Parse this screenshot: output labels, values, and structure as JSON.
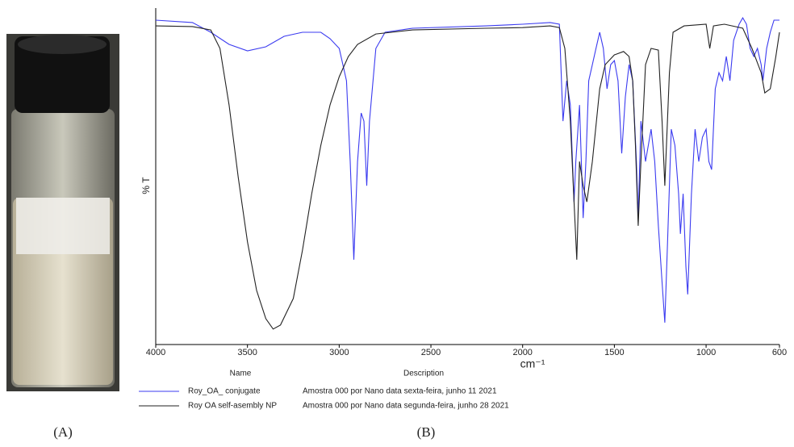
{
  "panel_labels": [
    "(A)",
    "(B)"
  ],
  "chart_data": {
    "type": "line",
    "xlabel": "cm⁻¹",
    "ylabel": "% T",
    "xlim": [
      4000,
      600
    ],
    "xticks": [
      4000,
      3500,
      3000,
      2500,
      2000,
      1500,
      1000,
      600
    ],
    "ylim": [
      0,
      100
    ],
    "legend_header": [
      "Name",
      "Description"
    ],
    "series": [
      {
        "name": "Roy_OA_ conjugate",
        "description": "Amostra 000 por Nano data sexta-feira, junho 11 2021",
        "color": "#3b3bf0",
        "x": [
          4000,
          3800,
          3700,
          3600,
          3500,
          3400,
          3300,
          3200,
          3100,
          3050,
          3000,
          2960,
          2940,
          2920,
          2900,
          2880,
          2865,
          2850,
          2835,
          2800,
          2750,
          2600,
          2200,
          2000,
          1850,
          1800,
          1780,
          1760,
          1740,
          1720,
          1710,
          1690,
          1670,
          1655,
          1640,
          1620,
          1600,
          1580,
          1560,
          1540,
          1520,
          1500,
          1480,
          1460,
          1440,
          1420,
          1400,
          1380,
          1370,
          1355,
          1330,
          1300,
          1280,
          1260,
          1240,
          1225,
          1210,
          1190,
          1170,
          1150,
          1140,
          1125,
          1110,
          1100,
          1080,
          1060,
          1040,
          1020,
          1000,
          985,
          970,
          950,
          930,
          910,
          890,
          870,
          850,
          820,
          800,
          780,
          760,
          740,
          720,
          700,
          690,
          670,
          650,
          630,
          600
        ],
        "values": [
          96.4,
          95.7,
          92.8,
          89.2,
          87.3,
          88.5,
          91.6,
          92.8,
          92.8,
          90.9,
          88.0,
          78.4,
          54.4,
          25.2,
          54.4,
          68.8,
          66.4,
          47.2,
          66.4,
          88.0,
          92.8,
          94.0,
          94.7,
          95.2,
          95.7,
          95.2,
          66.4,
          78.4,
          71.2,
          42.4,
          54.4,
          71.2,
          37.6,
          54.4,
          78.4,
          83.2,
          88.0,
          92.8,
          88.0,
          76.0,
          83.2,
          84.4,
          78.4,
          56.8,
          73.6,
          83.2,
          78.4,
          54.4,
          37.6,
          66.4,
          54.4,
          64.0,
          54.4,
          35.3,
          18.5,
          6.5,
          30.5,
          64.0,
          59.2,
          44.8,
          32.9,
          44.8,
          23.3,
          14.9,
          44.8,
          64.0,
          54.4,
          61.6,
          64.0,
          54.4,
          52.0,
          76.0,
          80.8,
          78.4,
          85.6,
          78.4,
          90.4,
          95.2,
          97.1,
          95.2,
          88.0,
          85.6,
          88.0,
          83.2,
          78.4,
          88.0,
          92.8,
          96.4,
          96.4
        ]
      },
      {
        "name": "Roy OA self-asembly NP",
        "description": "Amostra 000 por Nano data segunda-feira, junho 28 2021",
        "color": "#222222",
        "x": [
          4000,
          3800,
          3700,
          3650,
          3600,
          3550,
          3500,
          3450,
          3400,
          3360,
          3320,
          3250,
          3200,
          3150,
          3100,
          3050,
          3000,
          2950,
          2900,
          2800,
          2600,
          2200,
          2000,
          1850,
          1800,
          1770,
          1740,
          1720,
          1705,
          1690,
          1670,
          1650,
          1620,
          1580,
          1550,
          1500,
          1450,
          1420,
          1400,
          1385,
          1370,
          1355,
          1330,
          1300,
          1260,
          1240,
          1225,
          1200,
          1180,
          1120,
          1000,
          980,
          960,
          900,
          800,
          750,
          700,
          680,
          650,
          620,
          600
        ],
        "values": [
          94.7,
          94.5,
          93.5,
          88.0,
          71.2,
          49.6,
          30.5,
          16.1,
          7.7,
          4.6,
          5.8,
          13.7,
          28.1,
          44.8,
          59.2,
          71.2,
          79.6,
          85.6,
          89.2,
          92.3,
          93.5,
          94.0,
          94.2,
          94.7,
          94.2,
          88.0,
          66.4,
          42.4,
          25.2,
          54.4,
          47.2,
          42.4,
          54.4,
          76.0,
          83.2,
          86.1,
          87.1,
          85.6,
          78.4,
          59.2,
          35.3,
          54.4,
          83.2,
          88.0,
          87.5,
          66.4,
          47.2,
          80.8,
          92.8,
          94.7,
          95.2,
          88.0,
          94.7,
          95.2,
          94.0,
          88.0,
          80.8,
          74.8,
          76.0,
          85.6,
          92.8
        ]
      }
    ]
  }
}
